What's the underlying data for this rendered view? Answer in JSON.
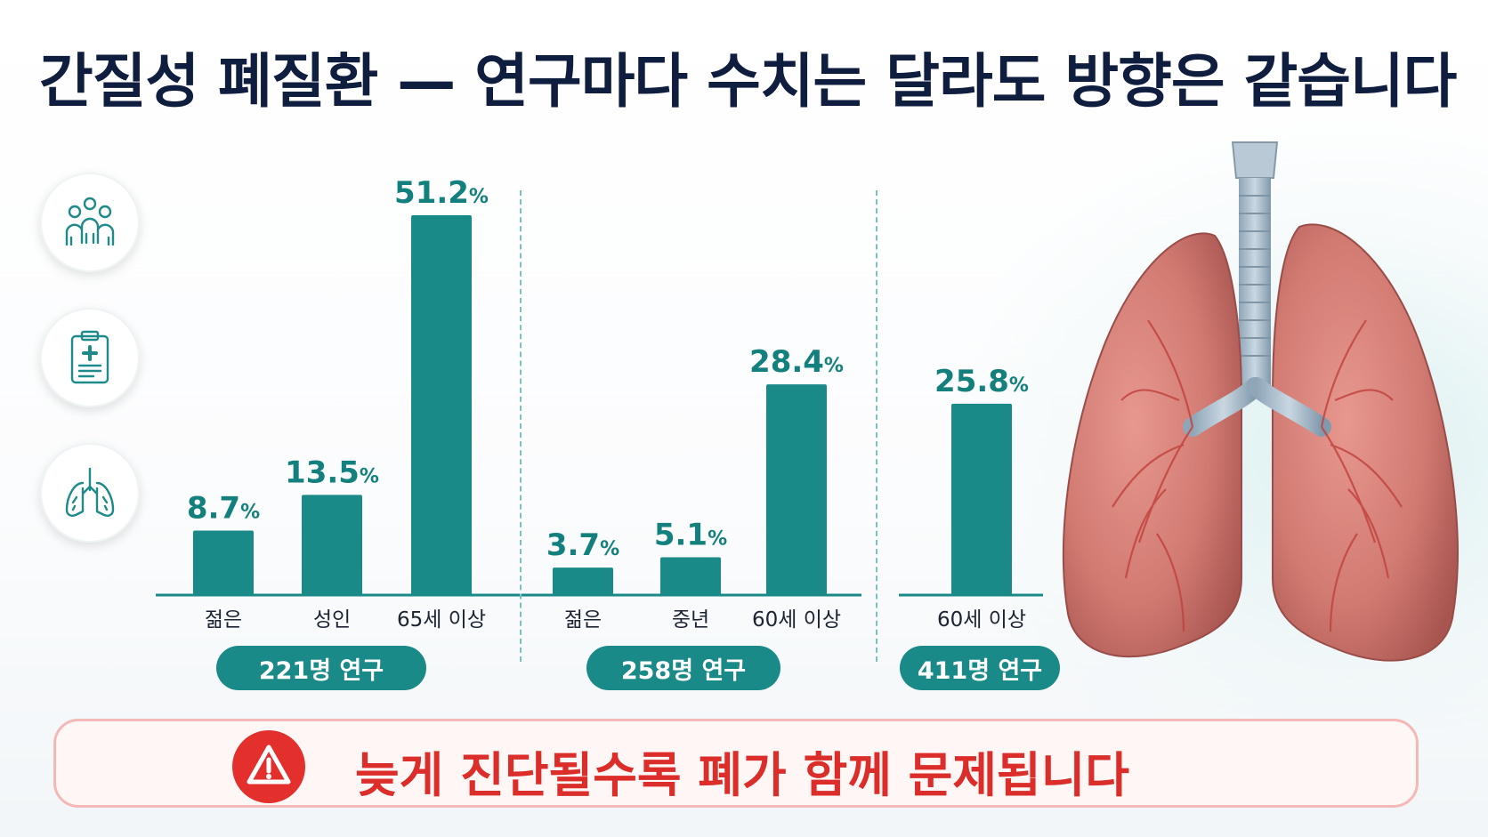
{
  "title": "간질성 폐질환 — 연구마다 수치는 달라도 방향은 같습니다",
  "icons": [
    "people-group-icon",
    "clipboard-medical-icon",
    "lungs-icon"
  ],
  "colors": {
    "bar": "#1a8a88",
    "value_text": "#14807e",
    "warning": "#e3302c",
    "title": "#0f1d3f"
  },
  "chart_data": [
    {
      "type": "bar",
      "categories": [
        "젊은",
        "성인",
        "65세 이상"
      ],
      "values": [
        8.7,
        13.5,
        51.2
      ],
      "value_labels": [
        "8.7",
        "13.5",
        "51.2"
      ],
      "unit": "%",
      "study_label": "221명 연구",
      "ylim": [
        0,
        55
      ]
    },
    {
      "type": "bar",
      "categories": [
        "젊은",
        "중년",
        "60세 이상"
      ],
      "values": [
        3.7,
        5.1,
        28.4
      ],
      "value_labels": [
        "3.7",
        "5.1",
        "28.4"
      ],
      "unit": "%",
      "study_label": "258명 연구",
      "ylim": [
        0,
        55
      ]
    },
    {
      "type": "bar",
      "categories": [
        "60세 이상"
      ],
      "values": [
        25.8
      ],
      "value_labels": [
        "25.8"
      ],
      "unit": "%",
      "study_label": "411명 연구",
      "ylim": [
        0,
        55
      ]
    }
  ],
  "banner": {
    "icon": "warning-icon",
    "text": "늦게 진단될수록 폐가 함께 문제됩니다"
  }
}
